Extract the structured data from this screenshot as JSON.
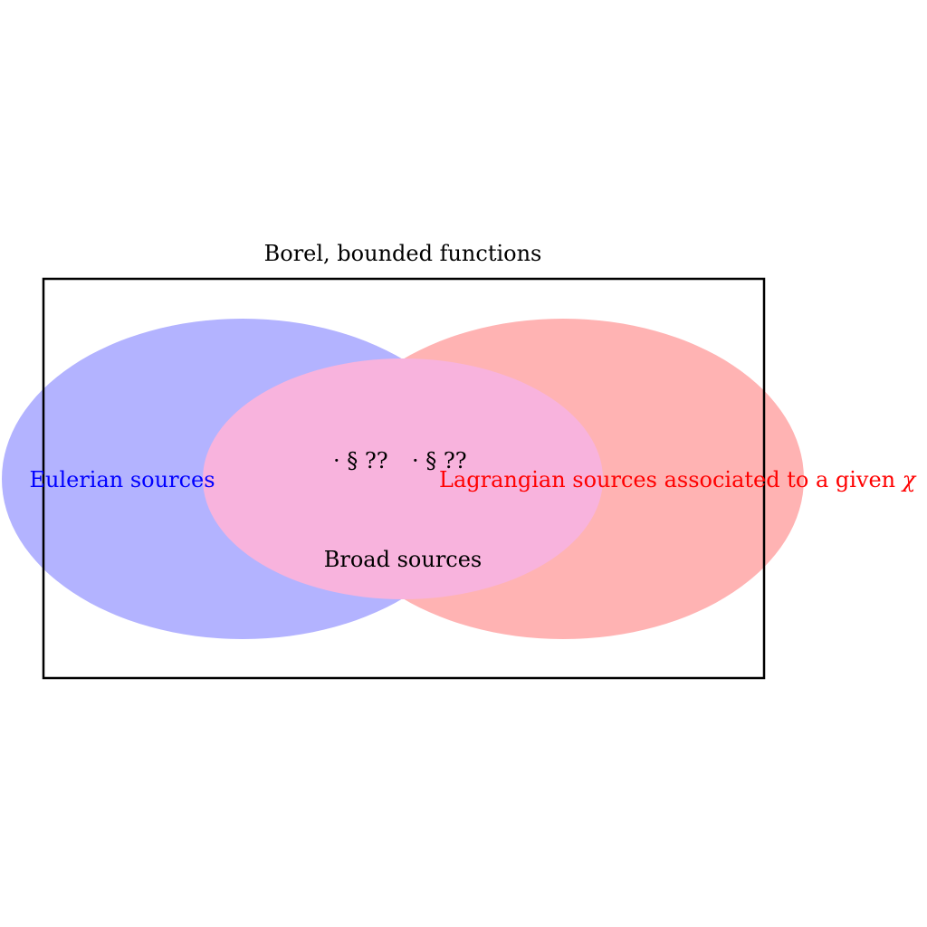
{
  "diagram": {
    "outer_set": {
      "label": "Borel, bounded functions"
    },
    "eulerian_set": {
      "label": "Eulerian sources",
      "color": "#0000ff",
      "fill": "#b3b3ff"
    },
    "lagrangian_set": {
      "label": "Lagrangian sources associated to a given ",
      "symbol": "χ",
      "color": "#ff0000",
      "fill": "#ffb3b3"
    },
    "broad_set": {
      "label": "Broad sources",
      "fill": "#f8b3dd",
      "refs": [
        "· § ??",
        "· § ??"
      ]
    }
  }
}
